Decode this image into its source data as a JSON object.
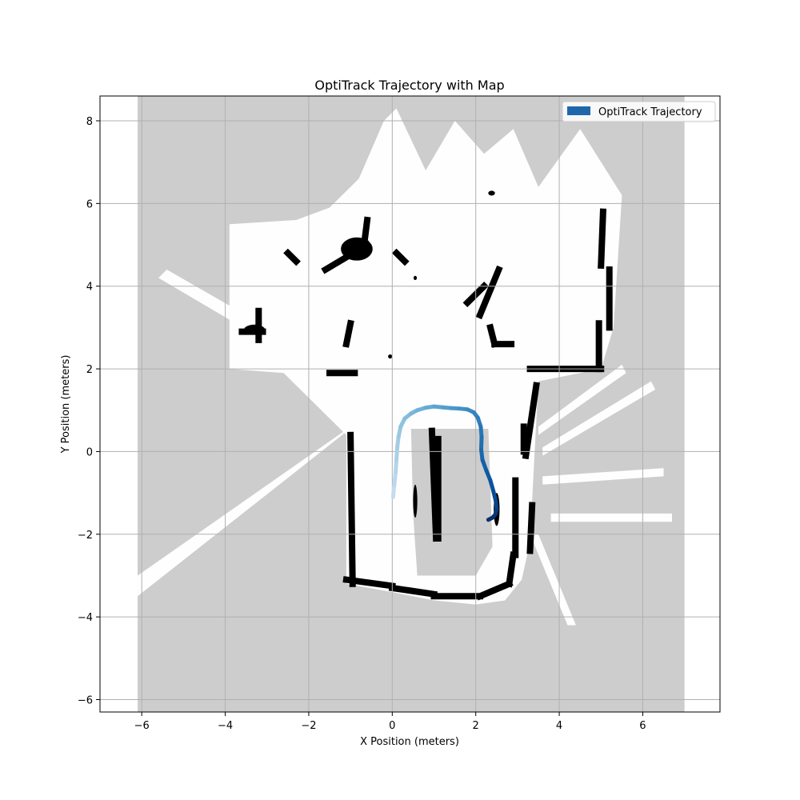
{
  "chart_data": {
    "type": "line",
    "title": "OptiTrack Trajectory with Map",
    "xlabel": "X Position (meters)",
    "ylabel": "Y Position (meters)",
    "xlim": [
      -7.0,
      7.85
    ],
    "ylim": [
      -6.3,
      8.6
    ],
    "xticks": [
      -6,
      -4,
      -2,
      0,
      2,
      4,
      6
    ],
    "yticks": [
      -6,
      -4,
      -2,
      0,
      2,
      4,
      6,
      8
    ],
    "xtick_labels": [
      "−6",
      "−4",
      "−2",
      "0",
      "2",
      "4",
      "6"
    ],
    "ytick_labels": [
      "−6",
      "−4",
      "−2",
      "0",
      "2",
      "4",
      "6",
      "8"
    ],
    "grid": true,
    "legend_position": "top-right",
    "background_map": {
      "description_colors": {
        "unknown": "#cdcdcd",
        "free": "#fefefe",
        "occupied": "#000000"
      },
      "extent_x": [
        -6.1,
        7.0
      ],
      "extent_y": [
        -6.3,
        8.6
      ],
      "free_region": [
        [
          -3.9,
          5.5
        ],
        [
          -2.3,
          5.6
        ],
        [
          -1.5,
          5.9
        ],
        [
          -0.8,
          6.6
        ],
        [
          -0.2,
          8.0
        ],
        [
          0.1,
          8.3
        ],
        [
          0.8,
          6.8
        ],
        [
          1.5,
          8.0
        ],
        [
          2.2,
          7.2
        ],
        [
          2.9,
          7.8
        ],
        [
          3.5,
          6.4
        ],
        [
          4.5,
          7.8
        ],
        [
          5.5,
          6.2
        ],
        [
          5.3,
          3.0
        ],
        [
          5.0,
          2.0
        ],
        [
          3.5,
          1.7
        ],
        [
          3.4,
          -0.2
        ],
        [
          3.3,
          -2.2
        ],
        [
          3.1,
          -3.1
        ],
        [
          2.7,
          -3.6
        ],
        [
          2.0,
          -3.7
        ],
        [
          1.0,
          -3.6
        ],
        [
          0.0,
          -3.4
        ],
        [
          -1.1,
          -3.2
        ],
        [
          -1.1,
          0.4
        ],
        [
          -1.3,
          0.6
        ],
        [
          -2.6,
          1.9
        ],
        [
          -3.9,
          2.0
        ]
      ],
      "unknown_islands": [
        [
          [
            0.45,
            0.55
          ],
          [
            2.3,
            0.55
          ],
          [
            2.4,
            -2.3
          ],
          [
            2.0,
            -3.0
          ],
          [
            0.6,
            -3.0
          ],
          [
            0.5,
            -1.5
          ]
        ]
      ],
      "free_rays": [
        [
          [
            -6.1,
            -3.5
          ],
          [
            -1.2,
            0.4
          ],
          [
            -1.0,
            0.6
          ],
          [
            -6.1,
            -3.0
          ]
        ],
        [
          [
            -5.6,
            4.2
          ],
          [
            -2.4,
            2.3
          ],
          [
            -2.3,
            2.6
          ],
          [
            -5.4,
            4.4
          ]
        ],
        [
          [
            3.8,
            -1.7
          ],
          [
            6.7,
            -1.7
          ],
          [
            6.7,
            -1.5
          ],
          [
            3.8,
            -1.5
          ]
        ],
        [
          [
            3.6,
            -0.8
          ],
          [
            6.5,
            -0.6
          ],
          [
            6.5,
            -0.4
          ],
          [
            3.6,
            -0.6
          ]
        ],
        [
          [
            3.6,
            -0.1
          ],
          [
            6.3,
            1.5
          ],
          [
            6.2,
            1.7
          ],
          [
            3.6,
            0.1
          ]
        ],
        [
          [
            3.5,
            0.4
          ],
          [
            5.6,
            1.9
          ],
          [
            5.5,
            2.1
          ],
          [
            3.5,
            0.6
          ]
        ],
        [
          [
            3.3,
            -2.0
          ],
          [
            4.2,
            -4.2
          ],
          [
            4.4,
            -4.2
          ],
          [
            3.5,
            -2.0
          ]
        ]
      ],
      "occupied_segments": [
        [
          [
            -1.0,
            0.4
          ],
          [
            -0.95,
            -3.2
          ]
        ],
        [
          [
            -1.1,
            -3.1
          ],
          [
            0.0,
            -3.25
          ]
        ],
        [
          [
            0.0,
            -3.3
          ],
          [
            1.0,
            -3.45
          ]
        ],
        [
          [
            1.0,
            -3.5
          ],
          [
            2.1,
            -3.5
          ]
        ],
        [
          [
            2.1,
            -3.5
          ],
          [
            2.8,
            -3.2
          ]
        ],
        [
          [
            2.8,
            -3.2
          ],
          [
            2.9,
            -2.5
          ]
        ],
        [
          [
            2.95,
            -2.5
          ],
          [
            2.95,
            -0.7
          ]
        ],
        [
          [
            3.3,
            -2.4
          ],
          [
            3.35,
            -1.3
          ]
        ],
        [
          [
            3.2,
            -0.1
          ],
          [
            3.45,
            1.6
          ]
        ],
        [
          [
            3.15,
            0.0
          ],
          [
            3.15,
            0.6
          ]
        ],
        [
          [
            0.95,
            0.5
          ],
          [
            1.05,
            -2.1
          ]
        ],
        [
          [
            1.1,
            0.3
          ],
          [
            1.1,
            -2.1
          ]
        ],
        [
          [
            3.3,
            2.0
          ],
          [
            5.0,
            2.0
          ]
        ],
        [
          [
            4.95,
            2.0
          ],
          [
            4.95,
            3.1
          ]
        ],
        [
          [
            5.2,
            3.0
          ],
          [
            5.2,
            4.4
          ]
        ],
        [
          [
            5.0,
            4.5
          ],
          [
            5.05,
            5.8
          ]
        ],
        [
          [
            2.1,
            3.3
          ],
          [
            2.55,
            4.4
          ]
        ],
        [
          [
            2.35,
            3.0
          ],
          [
            2.45,
            2.6
          ]
        ],
        [
          [
            2.45,
            2.6
          ],
          [
            2.85,
            2.6
          ]
        ],
        [
          [
            1.8,
            3.6
          ],
          [
            2.2,
            4.0
          ]
        ],
        [
          [
            -1.6,
            4.4
          ],
          [
            -0.6,
            5.0
          ]
        ],
        [
          [
            -0.7,
            4.8
          ],
          [
            -0.6,
            5.6
          ]
        ],
        [
          [
            -1.0,
            3.1
          ],
          [
            -1.1,
            2.6
          ]
        ],
        [
          [
            -1.5,
            1.9
          ],
          [
            -0.9,
            1.9
          ]
        ],
        [
          [
            -3.6,
            2.9
          ],
          [
            -3.1,
            2.9
          ]
        ],
        [
          [
            -3.2,
            3.4
          ],
          [
            -3.2,
            2.7
          ]
        ],
        [
          [
            -2.5,
            4.8
          ],
          [
            -2.3,
            4.6
          ]
        ],
        [
          [
            0.1,
            4.8
          ],
          [
            0.3,
            4.6
          ]
        ]
      ],
      "occupied_blobs": [
        [
          [
            -0.85,
            4.9
          ],
          0.38,
          0.28
        ],
        [
          [
            -3.3,
            2.95
          ],
          0.25,
          0.12
        ],
        [
          [
            2.5,
            -1.4
          ],
          0.07,
          0.4
        ],
        [
          [
            0.55,
            -1.2
          ],
          0.05,
          0.4
        ],
        [
          [
            2.38,
            6.25
          ],
          0.08,
          0.06
        ],
        [
          [
            -0.05,
            2.3
          ],
          0.05,
          0.05
        ],
        [
          [
            0.55,
            4.2
          ],
          0.04,
          0.05
        ],
        [
          [
            3.35,
            0.9
          ],
          0.04,
          0.4
        ]
      ]
    },
    "series": [
      {
        "name": "OptiTrack Trajectory",
        "color": "#1f67ab",
        "colormap": [
          "#c6dbef",
          "#9ecae1",
          "#6baed6",
          "#4292c6",
          "#2171b5",
          "#08519c",
          "#08306b"
        ],
        "x": [
          0.02,
          0.05,
          0.08,
          0.1,
          0.12,
          0.15,
          0.2,
          0.3,
          0.45,
          0.6,
          0.8,
          1.0,
          1.2,
          1.4,
          1.6,
          1.8,
          1.95,
          2.05,
          2.12,
          2.14,
          2.13,
          2.16,
          2.25,
          2.35,
          2.42,
          2.48,
          2.5,
          2.47,
          2.4,
          2.3
        ],
        "y": [
          -1.1,
          -0.8,
          -0.5,
          -0.2,
          0.1,
          0.35,
          0.6,
          0.8,
          0.92,
          1.0,
          1.06,
          1.09,
          1.07,
          1.05,
          1.04,
          1.02,
          0.95,
          0.82,
          0.6,
          0.35,
          0.05,
          -0.2,
          -0.45,
          -0.7,
          -0.95,
          -1.2,
          -1.4,
          -1.52,
          -1.6,
          -1.65
        ]
      }
    ]
  }
}
